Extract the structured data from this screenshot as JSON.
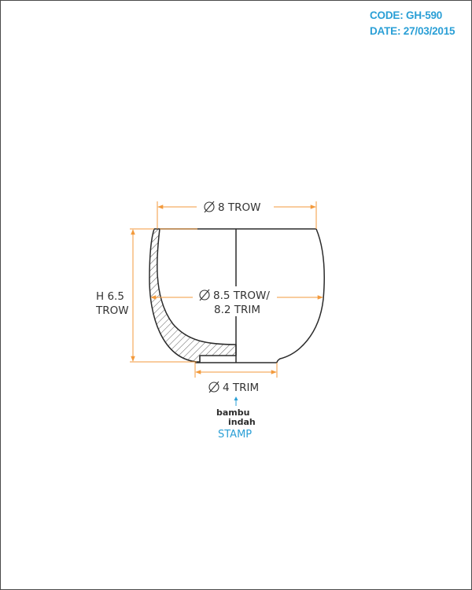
{
  "header": {
    "code": "CODE: GH-590",
    "date": "DATE: 27/03/2015"
  },
  "dimensions": {
    "top_diameter": "8 TROW",
    "body_diameter_line1": "8.5 TROW/",
    "body_diameter_line2": "8.2 TRIM",
    "height_line1": "H 6.5",
    "height_line2": "TROW",
    "base_diameter": "4 TRIM"
  },
  "stamp": {
    "brand_line1": "bambu",
    "brand_line2": "indah",
    "label": "STAMP"
  },
  "colors": {
    "dimension": "#f39a3c",
    "outline": "#2b2b2b",
    "accent": "#2a9fd6"
  }
}
